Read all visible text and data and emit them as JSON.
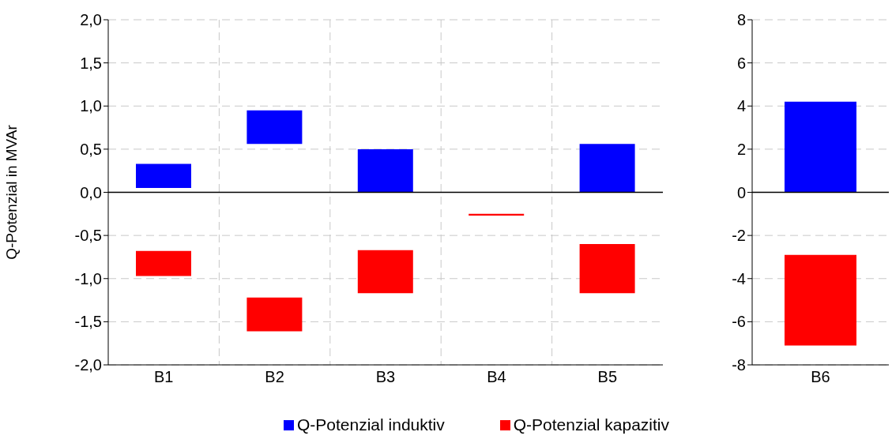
{
  "chart_data": [
    {
      "type": "bar",
      "ylabel": "Q-Potenzial in MVAr",
      "categories": [
        "B1",
        "B2",
        "B3",
        "B4",
        "B5"
      ],
      "series": [
        {
          "name": "Q-Potenzial induktiv",
          "color": "#0000ff",
          "values": [
            0.28,
            0.39,
            0.5,
            null,
            0.56
          ],
          "base": [
            0.05,
            0.56,
            0,
            null,
            0
          ]
        },
        {
          "name": "Q-Potenzial kapazitiv",
          "color": "#ff0000",
          "values": [
            0.29,
            0.39,
            0.5,
            0.02,
            0.57
          ],
          "base": [
            -0.97,
            -1.61,
            -1.17,
            -0.27,
            -1.17
          ]
        }
      ],
      "ylim": [
        -2,
        2
      ],
      "yticks": [
        {
          "value": -2,
          "label": "-2,0"
        },
        {
          "value": -1.5,
          "label": "-1,5"
        },
        {
          "value": -1,
          "label": "-1,0"
        },
        {
          "value": -0.5,
          "label": "-0,5"
        },
        {
          "value": 0,
          "label": "0,0"
        },
        {
          "value": 0.5,
          "label": "0,5"
        },
        {
          "value": 1,
          "label": "1,0"
        },
        {
          "value": 1.5,
          "label": "1,5"
        },
        {
          "value": 2,
          "label": "2,0"
        }
      ],
      "ref_lines": [
        {
          "axis": "y",
          "value": 0
        }
      ],
      "grid": true,
      "legend": "bottom"
    },
    {
      "type": "bar",
      "categories": [
        "B6"
      ],
      "series": [
        {
          "color": "#0000ff",
          "values": [
            4.2
          ],
          "base": [
            0
          ]
        },
        {
          "color": "#ff0000",
          "values": [
            4.2
          ],
          "base": [
            -7.1
          ]
        }
      ],
      "ylim": [
        -8,
        8
      ],
      "yticks": [
        -8,
        -6,
        -4,
        -2,
        0,
        2,
        4,
        6,
        8
      ],
      "ref_lines": [
        {
          "axis": "y",
          "value": 0
        }
      ],
      "grid": "y"
    }
  ]
}
